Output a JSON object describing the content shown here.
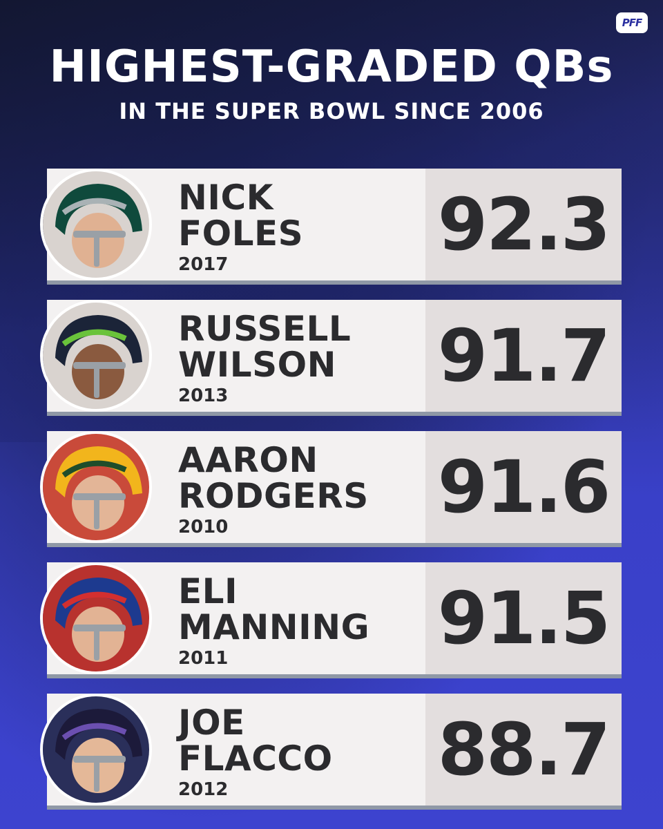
{
  "brand": {
    "logo_text": "PFF"
  },
  "header": {
    "title": "HIGHEST-GRADED QBs",
    "subtitle": "IN THE SUPER BOWL SINCE 2006"
  },
  "players": [
    {
      "name_line1": "NICK",
      "name_line2": "FOLES",
      "year": "2017",
      "grade": "92.3",
      "helmet_color": "#0f4a3c",
      "accent_color": "#a9b2b5"
    },
    {
      "name_line1": "RUSSELL",
      "name_line2": "WILSON",
      "year": "2013",
      "grade": "91.7",
      "helmet_color": "#1b2438",
      "accent_color": "#6ac33b"
    },
    {
      "name_line1": "AARON",
      "name_line2": "RODGERS",
      "year": "2010",
      "grade": "91.6",
      "helmet_color": "#f2b51c",
      "accent_color": "#1f4d2b"
    },
    {
      "name_line1": "ELI",
      "name_line2": "MANNING",
      "year": "2011",
      "grade": "91.5",
      "helmet_color": "#1d3a8f",
      "accent_color": "#d32f2f"
    },
    {
      "name_line1": "JOE",
      "name_line2": "FLACCO",
      "year": "2012",
      "grade": "88.7",
      "helmet_color": "#1c1a3a",
      "accent_color": "#6b4fb0"
    }
  ]
}
